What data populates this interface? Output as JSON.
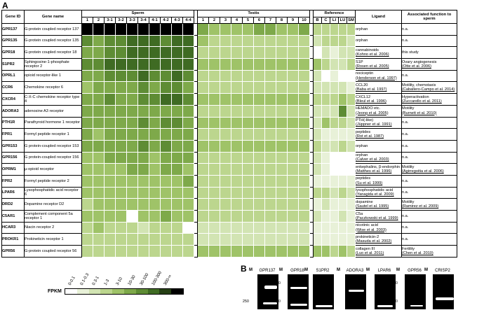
{
  "panel_a_label": "A",
  "panel_b_label": "B",
  "headers": {
    "gene_id": "Gene ID",
    "gene_name": "Gene name",
    "sperm": "Sperm",
    "testis": "Testis",
    "reference": "Reference",
    "ligand": "Ligand",
    "function": "Associated function to sperm"
  },
  "sperm_cols": [
    "1",
    "2",
    "3-1",
    "3-2",
    "3-3",
    "3-4",
    "4-1",
    "4-2",
    "4-3",
    "4-4"
  ],
  "testis_cols": [
    "1",
    "2",
    "3",
    "4",
    "5",
    "6",
    "7",
    "8",
    "9",
    "10"
  ],
  "ref_cols": [
    "B",
    "C",
    "LI",
    "LU",
    "SM"
  ],
  "colors": [
    "#ffffff",
    "#e8f1d8",
    "#d2e4b3",
    "#bcd68e",
    "#9fc368",
    "#7ea94a",
    "#5e8c34",
    "#3f6b23",
    "#253f14",
    "#000000"
  ],
  "rows": [
    {
      "id": "GPR137",
      "name": "G-protein coupled receptor 137",
      "lig": "orphan",
      "lig_ref": "",
      "func": "n.a.",
      "func_ref": "",
      "sperm": [
        9,
        9,
        9,
        9,
        9,
        9,
        9,
        9,
        9,
        9
      ],
      "testis": [
        5,
        4,
        4,
        4,
        4,
        5,
        5,
        4,
        4,
        5
      ],
      "ref": [
        3,
        3,
        3,
        3,
        3
      ]
    },
    {
      "id": "GPR135",
      "name": "G-protein coupled receptor 135",
      "lig": "orphan",
      "lig_ref": "",
      "func": "n.a.",
      "func_ref": "",
      "sperm": [
        6,
        5,
        6,
        6,
        7,
        7,
        7,
        6,
        7,
        7
      ],
      "testis": [
        4,
        3,
        3,
        3,
        3,
        3,
        3,
        3,
        3,
        3
      ],
      "ref": [
        2,
        3,
        3,
        3,
        2
      ]
    },
    {
      "id": "GPR18",
      "name": "G-protein coupled receptor 18",
      "lig": "cannabinoids",
      "lig_ref": "(Kohno et al. 2006)",
      "func": "this study",
      "func_ref": "",
      "sperm": [
        5,
        5,
        6,
        6,
        7,
        7,
        7,
        7,
        7,
        7
      ],
      "testis": [
        3,
        3,
        3,
        3,
        3,
        3,
        3,
        3,
        3,
        3
      ],
      "ref": [
        0,
        2,
        1,
        2,
        2
      ]
    },
    {
      "id": "S1PR2",
      "name": "Sphingosine-1-phosphate receptor 2",
      "lig": "S1P",
      "lig_ref": "(Rosen et al. 2005)",
      "func": "Ovary angiogenesis",
      "func_ref": "(Otte et al. 2006)",
      "sperm": [
        6,
        6,
        7,
        7,
        7,
        7,
        7,
        7,
        7,
        7
      ],
      "testis": [
        4,
        4,
        4,
        4,
        4,
        4,
        4,
        4,
        4,
        4
      ],
      "ref": [
        4,
        3,
        2,
        2,
        3
      ]
    },
    {
      "id": "OPRL1",
      "name": "opioid receptor-like 1",
      "lig": "nociceptin",
      "lig_ref": "(Henderson et al. 1997)",
      "func": "n.a.",
      "func_ref": "",
      "sperm": [
        5,
        5,
        6,
        6,
        6,
        7,
        6,
        6,
        7,
        6
      ],
      "testis": [
        3,
        3,
        3,
        3,
        3,
        3,
        3,
        3,
        3,
        3
      ],
      "ref": [
        2,
        0,
        1,
        0,
        0
      ]
    },
    {
      "id": "CCR6",
      "name": "Chemokine receptor 6",
      "lig": "CCL20",
      "lig_ref": "(Baba et al. 1997)",
      "func": "Motility, chemotaxis",
      "func_ref": "(Caballero-Campo et al. 2014)",
      "sperm": [
        4,
        5,
        5,
        5,
        5,
        6,
        5,
        6,
        6,
        5
      ],
      "testis": [
        3,
        3,
        3,
        3,
        3,
        3,
        3,
        3,
        3,
        3
      ],
      "ref": [
        2,
        2,
        2,
        2,
        1
      ]
    },
    {
      "id": "CXCR4",
      "name": "C-X-C chemokine receptor type 4",
      "lig": "CXCL12",
      "lig_ref": "(Bleul et al. 1996)",
      "func": "Hyperactivation",
      "func_ref": "(Zuccarello et al. 2011)",
      "sperm": [
        5,
        5,
        6,
        5,
        5,
        6,
        6,
        7,
        7,
        6
      ],
      "testis": [
        4,
        4,
        4,
        4,
        4,
        4,
        4,
        4,
        4,
        4
      ],
      "ref": [
        3,
        3,
        3,
        4,
        3
      ]
    },
    {
      "id": "ADORA3",
      "name": "adenosine A3 receptor",
      "lig": "HEMADO etc.",
      "lig_ref": "(Jeong et al. 2005)",
      "func": "Motility",
      "func_ref": "(Burnett et al. 2010)",
      "sperm": [
        5,
        5,
        5,
        5,
        5,
        5,
        5,
        5,
        5,
        5
      ],
      "testis": [
        3,
        3,
        3,
        3,
        3,
        3,
        3,
        3,
        3,
        3
      ],
      "ref": [
        2,
        2,
        2,
        6,
        2
      ]
    },
    {
      "id": "PTH1R",
      "name": "Parathyroid hormone 1 receptor",
      "lig": "PTH(-like)",
      "lig_ref": "(Jüppner et al. 1991)",
      "func": "n.a.",
      "func_ref": "",
      "sperm": [
        5,
        5,
        5,
        5,
        5,
        6,
        5,
        6,
        6,
        5
      ],
      "testis": [
        4,
        4,
        4,
        4,
        4,
        4,
        4,
        4,
        4,
        4
      ],
      "ref": [
        2,
        4,
        3,
        3,
        2
      ]
    },
    {
      "id": "FPR1",
      "name": "Formyl peptide receptor 1",
      "lig": "peptides",
      "lig_ref": "(Rot et al. 1987)",
      "func": "n.a.",
      "func_ref": "",
      "sperm": [
        5,
        4,
        5,
        5,
        5,
        5,
        5,
        5,
        5,
        5
      ],
      "testis": [
        3,
        3,
        3,
        3,
        3,
        3,
        3,
        3,
        3,
        3
      ],
      "ref": [
        2,
        1,
        1,
        1,
        1
      ]
    },
    {
      "id": "GPR153",
      "name": "G protein-coupled receptor 153",
      "lig": "orphan",
      "lig_ref": "",
      "func": "n.a.",
      "func_ref": "",
      "sperm": [
        5,
        5,
        5,
        5,
        5,
        6,
        5,
        6,
        5,
        5
      ],
      "testis": [
        4,
        4,
        4,
        4,
        4,
        4,
        4,
        4,
        4,
        4
      ],
      "ref": [
        3,
        2,
        2,
        3,
        2
      ]
    },
    {
      "id": "GPR156",
      "name": "G protein-coupled receptor 156",
      "lig": "orphan",
      "lig_ref": "(Calver et al. 2003)",
      "func": "n.a.",
      "func_ref": "",
      "sperm": [
        4,
        4,
        5,
        5,
        5,
        5,
        4,
        5,
        5,
        5
      ],
      "testis": [
        3,
        3,
        3,
        3,
        3,
        3,
        3,
        3,
        3,
        3
      ],
      "ref": [
        2,
        1,
        0,
        0,
        0
      ]
    },
    {
      "id": "OPRM1",
      "name": "µ-opioid receptor",
      "lig": "enkephalins, β-endorphin",
      "lig_ref": "(Matthes et al. 1996)",
      "func": "Motility",
      "func_ref": "(Agirregoitia et al. 2006)",
      "sperm": [
        4,
        4,
        4,
        4,
        5,
        5,
        4,
        5,
        5,
        4
      ],
      "testis": [
        3,
        3,
        3,
        3,
        3,
        3,
        3,
        3,
        3,
        3
      ],
      "ref": [
        2,
        1,
        0,
        0,
        0
      ]
    },
    {
      "id": "FPR2",
      "name": "Formyl peptide receptor 2",
      "lig": "peptides",
      "lig_ref": "(Su et al. 1999)",
      "func": "n.a.",
      "func_ref": "",
      "sperm": [
        4,
        4,
        4,
        4,
        4,
        4,
        4,
        4,
        4,
        5
      ],
      "testis": [
        3,
        3,
        3,
        3,
        3,
        3,
        3,
        3,
        3,
        3
      ],
      "ref": [
        1,
        1,
        1,
        1,
        1
      ]
    },
    {
      "id": "LPAR6",
      "name": "Lysophosphatidic acid receptor 6",
      "lig": "lysophosphatidic acid",
      "lig_ref": "(Yanagida et al. 2009)",
      "func": "n.a.",
      "func_ref": "",
      "sperm": [
        4,
        4,
        4,
        4,
        4,
        4,
        4,
        4,
        4,
        4
      ],
      "testis": [
        3,
        3,
        3,
        3,
        3,
        3,
        3,
        3,
        3,
        3
      ],
      "ref": [
        3,
        3,
        2,
        3,
        2
      ]
    },
    {
      "id": "DRD2",
      "name": "Dopamine receptor D2",
      "lig": "dopamine",
      "lig_ref": "(Sautel et al. 1995)",
      "func": "Motility",
      "func_ref": "(Ramirez et al. 2009)",
      "sperm": [
        3,
        4,
        4,
        4,
        4,
        4,
        4,
        4,
        4,
        4
      ],
      "testis": [
        3,
        3,
        3,
        3,
        3,
        3,
        3,
        3,
        3,
        3
      ],
      "ref": [
        1,
        2,
        1,
        1,
        1
      ]
    },
    {
      "id": "C5AR1",
      "name": "Complement component 5a receptor 1",
      "lig": "C5a",
      "lig_ref": "(Paczkowski et al. 1999)",
      "func": "n.a.",
      "func_ref": "",
      "sperm": [
        4,
        4,
        4,
        4,
        0,
        4,
        4,
        5,
        4,
        4
      ],
      "testis": [
        3,
        3,
        3,
        3,
        3,
        3,
        3,
        3,
        3,
        3
      ],
      "ref": [
        2,
        1,
        1,
        2,
        1
      ]
    },
    {
      "id": "HCAR3",
      "name": "Niacin receptor 2",
      "lig": "nicotinic acid",
      "lig_ref": "(Wise et al. 2003)",
      "func": "n.a.",
      "func_ref": "",
      "sperm": [
        3,
        4,
        3,
        3,
        3,
        2,
        3,
        3,
        3,
        0
      ],
      "testis": [
        2,
        2,
        2,
        2,
        2,
        2,
        2,
        2,
        2,
        2
      ],
      "ref": [
        1,
        1,
        1,
        1,
        1
      ]
    },
    {
      "id": "PROKR1",
      "name": "Prokineticin receptor 1",
      "lig": "prokineticin-2",
      "lig_ref": "(Masuda et al. 2002)",
      "func": "n.a.",
      "func_ref": "",
      "sperm": [
        3,
        3,
        3,
        3,
        3,
        3,
        3,
        3,
        3,
        3
      ],
      "testis": [
        2,
        2,
        2,
        2,
        2,
        2,
        2,
        2,
        2,
        2
      ],
      "ref": [
        1,
        1,
        1,
        1,
        1
      ]
    },
    {
      "id": "GPR56",
      "name": "G-protein coupled receptor 56",
      "lig": "collagen III",
      "lig_ref": "(Luo et al. 2011)",
      "func": "Fertility",
      "func_ref": "(Chen et al. 2010)",
      "sperm": [
        3,
        3,
        3,
        3,
        3,
        3,
        3,
        3,
        3,
        3
      ],
      "testis": [
        4,
        4,
        4,
        4,
        4,
        4,
        4,
        4,
        4,
        4
      ],
      "ref": [
        4,
        4,
        3,
        4,
        3
      ]
    }
  ],
  "fpkm": {
    "title": "FPKM",
    "labels": [
      "0-0.1",
      "0.1-0.3",
      "0.3-1",
      "1-3",
      "3-10",
      "10-30",
      "30-100",
      "100-300",
      "300-∞"
    ]
  },
  "gels": [
    {
      "title": "GPR137",
      "m": "M",
      "mark_hi": "500",
      "mark_lo": "250"
    },
    {
      "title": "GPR18",
      "m": "M",
      "mark_hi": "500",
      "mark_lo": "250"
    },
    {
      "title": "S1PR2",
      "m": "M",
      "mark_hi": "500",
      "mark_lo": "250"
    },
    {
      "title": "ADORA3",
      "m": "M",
      "mark_hi": "500",
      "mark_lo": "250"
    },
    {
      "title": "LPAR6",
      "m": "M",
      "mark_hi": "500",
      "mark_lo": "250"
    },
    {
      "title": "GPR56",
      "m": "M",
      "mark_hi": "500",
      "mark_lo": "250"
    },
    {
      "title": "CRISP2",
      "m": "M",
      "mark_hi": "500",
      "mark_lo": "250"
    }
  ]
}
